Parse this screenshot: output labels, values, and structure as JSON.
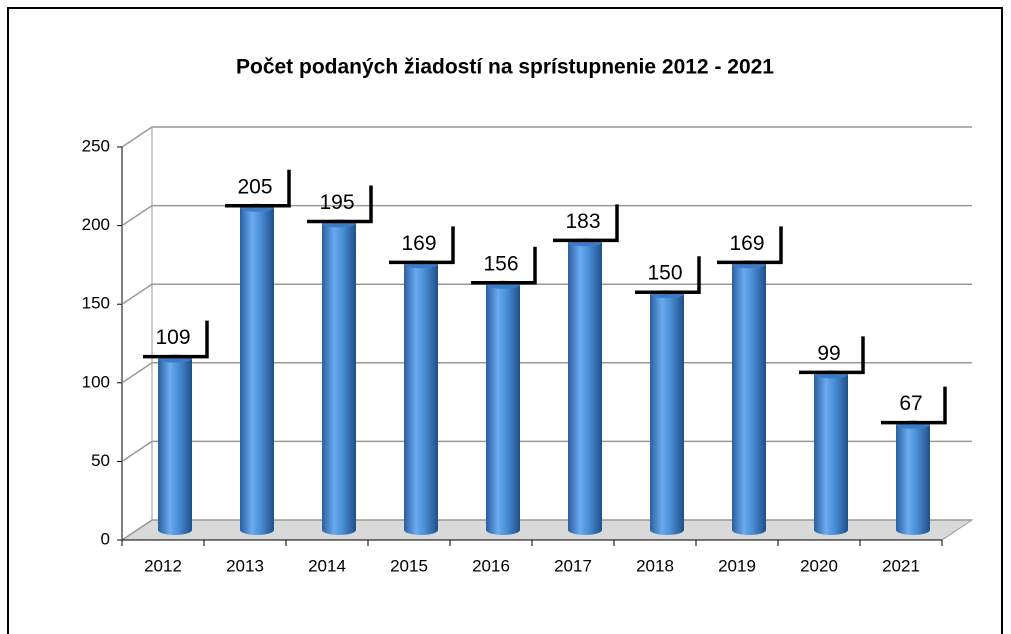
{
  "chart_data": {
    "type": "bar",
    "title": "Počet podaných žiadostí na sprístupnenie  2012 - 2021",
    "categories": [
      "2012",
      "2013",
      "2014",
      "2015",
      "2016",
      "2017",
      "2018",
      "2019",
      "2020",
      "2021"
    ],
    "values": [
      109,
      205,
      195,
      169,
      156,
      183,
      150,
      169,
      99,
      67
    ],
    "color": "#4a8fd6",
    "ylim": [
      0,
      250
    ],
    "yticks": [
      0,
      50,
      100,
      150,
      200,
      250
    ],
    "grid": true
  }
}
